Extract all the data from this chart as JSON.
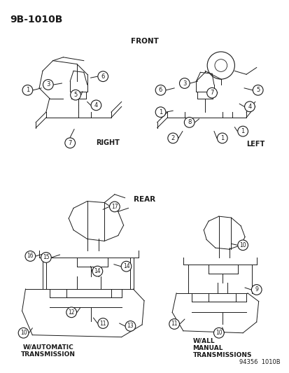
{
  "background_color": "#ffffff",
  "fig_width": 4.14,
  "fig_height": 5.33,
  "dpi": 100,
  "labels": {
    "title": "9B-1010B",
    "front": "FRONT",
    "rear": "REAR",
    "right": "RIGHT",
    "left": "LEFT",
    "w_auto": "W/AUTOMATIC\nTRANSMISSION",
    "w_manual": "W/ALL\nMANUAL\nTRANSMISSIONS",
    "code": "94356  1010B"
  },
  "text_color": "#1a1a1a",
  "line_color": "#1a1a1a",
  "circle_facecolor": "#ffffff",
  "circle_edgecolor": "#1a1a1a"
}
